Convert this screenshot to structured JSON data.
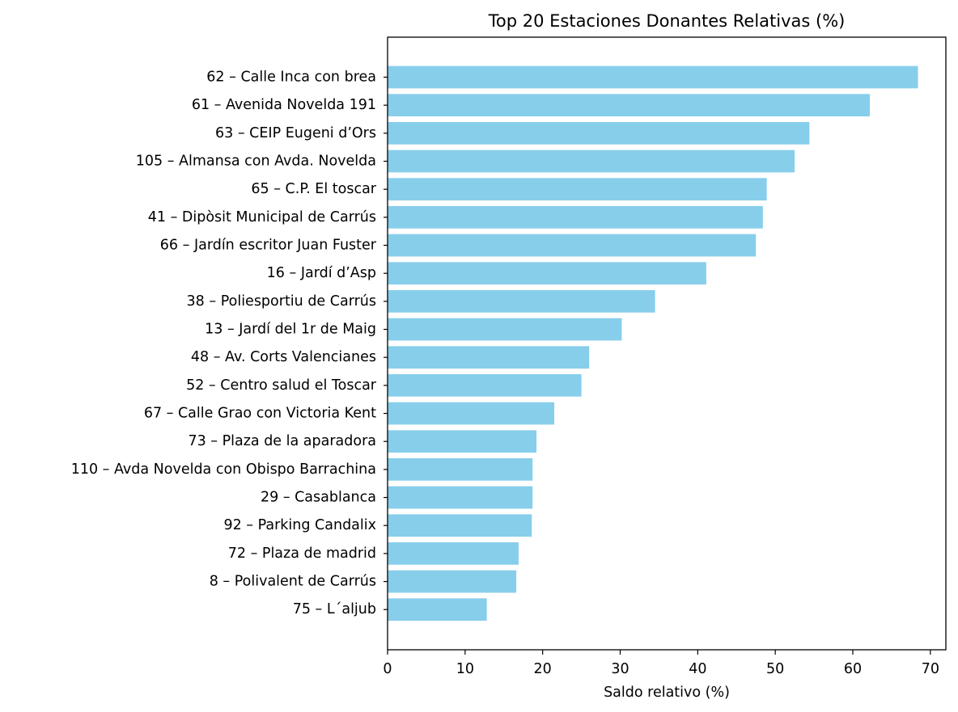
{
  "chart_data": {
    "type": "bar",
    "orientation": "horizontal",
    "title": "Top 20 Estaciones Donantes Relativas (%)",
    "xlabel": "Saldo relativo (%)",
    "ylabel": "",
    "xlim": [
      0,
      72
    ],
    "xticks": [
      0,
      10,
      20,
      30,
      40,
      50,
      60,
      70
    ],
    "grid": false,
    "bar_color": "#87ceeb",
    "categories": [
      "62 – Calle Inca con brea",
      "61 – Avenida Novelda 191",
      "63 – CEIP Eugeni d’Ors",
      "105 – Almansa con Avda. Novelda",
      "65 – C.P. El toscar",
      "41 – Dipòsit Municipal de Carrús",
      "66 – Jardín escritor Juan Fuster",
      "16 – Jardí d’Asp",
      "38 – Poliesportiu de Carrús",
      "13 – Jardí del 1r de Maig",
      "48 – Av. Corts Valencianes",
      "52 – Centro salud el Toscar",
      "67 – Calle Grao con Victoria Kent",
      "73 – Plaza de la aparadora",
      "110 – Avda Novelda con Obispo Barrachina",
      "29 – Casablanca",
      "92 – Parking Candalix",
      "72 – Plaza de madrid",
      "8 – Polivalent de Carrús",
      "75 – L´aljub"
    ],
    "values": [
      68.4,
      62.2,
      54.4,
      52.5,
      48.9,
      48.4,
      47.5,
      41.1,
      34.5,
      30.2,
      26.0,
      25.0,
      21.5,
      19.2,
      18.7,
      18.7,
      18.6,
      16.9,
      16.6,
      12.8
    ]
  }
}
